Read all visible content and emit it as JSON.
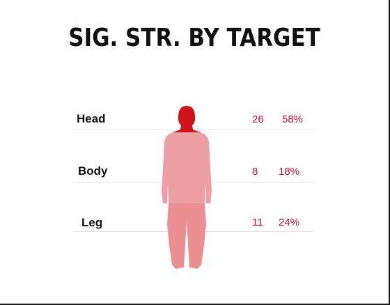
{
  "title": "SIG. STR. BY TARGET",
  "rows": [
    {
      "label": "Head",
      "count": "26",
      "percent": "58%"
    },
    {
      "label": "Body",
      "count": "8",
      "percent": "18%"
    },
    {
      "label": "Leg",
      "count": "11",
      "percent": "24%"
    }
  ],
  "colors": {
    "head": "#d0121b",
    "body": "#eda0a3",
    "leg": "#ec8f93",
    "accent": "#c8102e"
  },
  "icons": {
    "figure": "human-body-silhouette-icon"
  }
}
